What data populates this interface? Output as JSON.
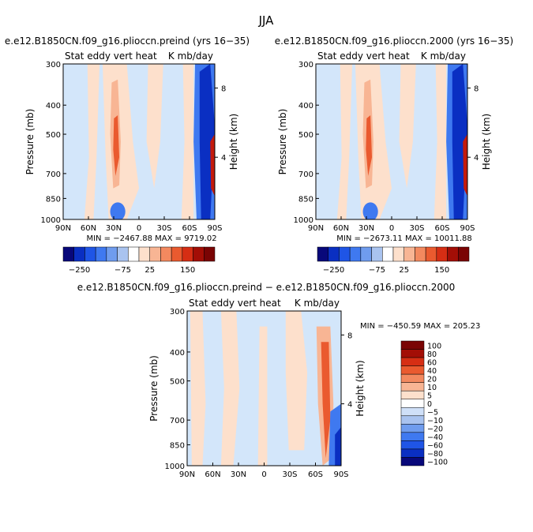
{
  "figure_title": "JJA",
  "colors": {
    "scale12": [
      "#08087a",
      "#0a2fc2",
      "#1f55e6",
      "#3f79f0",
      "#6f9cee",
      "#a9c3ef",
      "#ffffff",
      "#fde0cc",
      "#f8b594",
      "#f3895f",
      "#ea5a2f",
      "#d62e14",
      "#a30e06",
      "#7a0404"
    ],
    "diff_scale": [
      "#08087a",
      "#0a2fc2",
      "#1f55e6",
      "#3f79f0",
      "#6f9cee",
      "#a9c3ef",
      "#cfe0f8",
      "#ffffff",
      "#fde0cc",
      "#f8b594",
      "#f3895f",
      "#ea5a2f",
      "#d62e14",
      "#a30e06",
      "#7a0404"
    ],
    "light_blue": "#d3e6fa",
    "light_peach": "#fde0cc",
    "mid_peach": "#f8b594",
    "orange": "#ea5a2f",
    "red": "#c41a0c",
    "dark_blue": "#0a2fc2",
    "mid_blue": "#3f79f0"
  },
  "chart_data": [
    {
      "type": "heatmap",
      "title": "e.e12.B1850CN.f09_g16.plioccn.preind (yrs 16−35)",
      "subtitle_left": "Stat eddy vert heat",
      "subtitle_right": "K mb/day",
      "ylabel": "Pressure (mb)",
      "ylabel_right": "Height (km)",
      "x_ticks": [
        "90N",
        "60N",
        "30N",
        "0",
        "30S",
        "60S",
        "90S"
      ],
      "y_ticks": [
        "300",
        "400",
        "500",
        "700",
        "850",
        "1000"
      ],
      "y_ticks_right": [
        "8",
        "4"
      ],
      "stats": "MIN = −2467.88   MAX = 9719.02",
      "colorbar_labels": [
        "−250",
        "−75",
        "25",
        "150"
      ]
    },
    {
      "type": "heatmap",
      "title": "e.e12.B1850CN.f09_g16.plioccn.2000 (yrs 16−35)",
      "subtitle_left": "Stat eddy vert heat",
      "subtitle_right": "K mb/day",
      "ylabel": "Pressure (mb)",
      "ylabel_right": "Height (km)",
      "x_ticks": [
        "90N",
        "60N",
        "30N",
        "0",
        "30S",
        "60S",
        "90S"
      ],
      "y_ticks": [
        "300",
        "400",
        "500",
        "700",
        "850",
        "1000"
      ],
      "y_ticks_right": [
        "8",
        "4"
      ],
      "stats": "MIN = −2673.11   MAX = 10011.88",
      "colorbar_labels": [
        "−250",
        "−75",
        "25",
        "150"
      ]
    },
    {
      "type": "heatmap",
      "title": "e.e12.B1850CN.f09_g16.plioccn.preind − e.e12.B1850CN.f09_g16.plioccn.2000",
      "subtitle_left": "Stat eddy vert heat",
      "subtitle_right": "K mb/day",
      "ylabel": "Pressure (mb)",
      "ylabel_right": "Height (km)",
      "x_ticks": [
        "90N",
        "60N",
        "30N",
        "0",
        "30S",
        "60S",
        "90S"
      ],
      "y_ticks": [
        "300",
        "400",
        "500",
        "700",
        "850",
        "1000"
      ],
      "y_ticks_right": [
        "8",
        "4"
      ],
      "stats": "MIN = −450.59   MAX = 205.23",
      "colorbar_labels": [
        "100",
        "80",
        "60",
        "40",
        "20",
        "10",
        "5",
        "0",
        "−5",
        "−10",
        "−20",
        "−40",
        "−60",
        "−80",
        "−100"
      ]
    }
  ]
}
